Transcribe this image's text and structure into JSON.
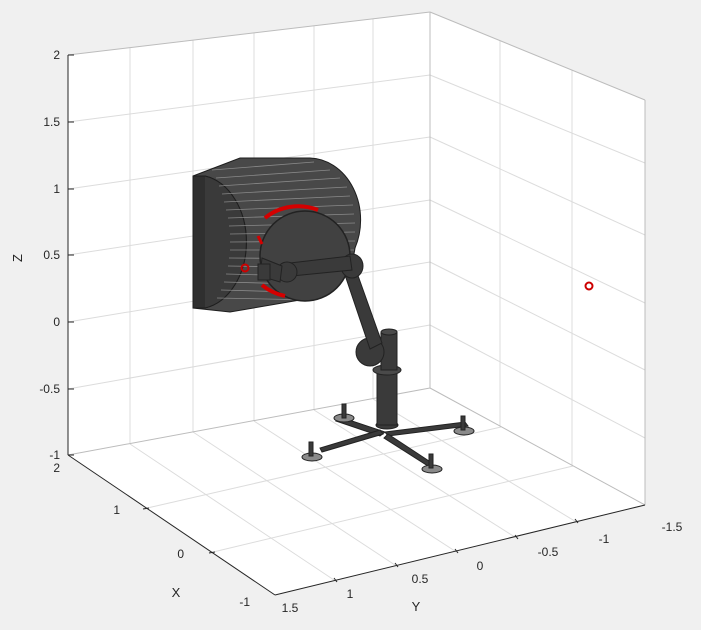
{
  "plot": {
    "axes": {
      "z": {
        "label": "Z",
        "ticks": [
          "2",
          "1.5",
          "1",
          "0.5",
          "0",
          "-0.5",
          "-1"
        ]
      },
      "x": {
        "label": "X",
        "ticks": [
          "2",
          "1",
          "0",
          "-1"
        ]
      },
      "y": {
        "label": "Y",
        "ticks": [
          "1.5",
          "1",
          "0.5",
          "0",
          "-0.5",
          "-1",
          "-1.5"
        ]
      }
    },
    "colors": {
      "background": "#f0f0f0",
      "axes_face": "#ffffff",
      "grid": "#dcdcdc",
      "robot": "#3a3a3a",
      "target_marker": "#cc0000"
    },
    "scene_objects": [
      "cylindrical-workpiece",
      "robot-arm",
      "mobile-base",
      "target-marker"
    ]
  }
}
